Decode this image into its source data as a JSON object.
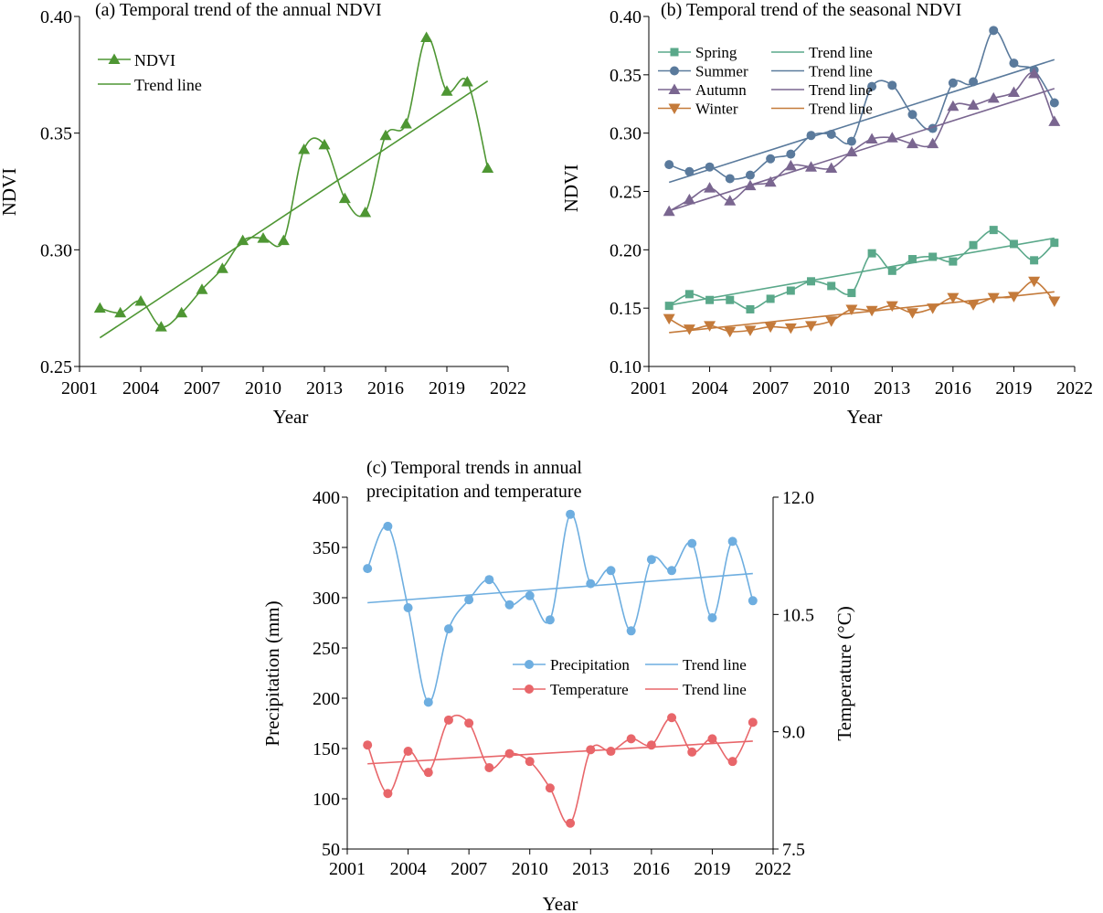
{
  "chart_data": [
    {
      "id": "a",
      "type": "line",
      "title": "(a) Temporal trend of the annual NDVI",
      "xlabel": "Year",
      "ylabel": "NDVI",
      "xlim": [
        2001,
        2022
      ],
      "xticks": [
        "2001",
        "2004",
        "2007",
        "2010",
        "2013",
        "2016",
        "2019",
        "2022"
      ],
      "ylim": [
        0.25,
        0.4
      ],
      "yticks": [
        "0.25",
        "0.30",
        "0.35",
        "0.40"
      ],
      "legend_position": "top-left",
      "x": [
        2002,
        2003,
        2004,
        2005,
        2006,
        2007,
        2008,
        2009,
        2010,
        2011,
        2012,
        2013,
        2014,
        2015,
        2016,
        2017,
        2018,
        2019,
        2020,
        2021
      ],
      "series": [
        {
          "name": "NDVI",
          "trend_name": "Trend line",
          "color": "#4e9633",
          "marker": "triangle-up",
          "values": [
            0.275,
            0.273,
            0.278,
            0.267,
            0.273,
            0.283,
            0.292,
            0.304,
            0.305,
            0.304,
            0.343,
            0.345,
            0.322,
            0.316,
            0.349,
            0.354,
            0.391,
            0.368,
            0.372,
            0.335
          ],
          "trend": [
            0.2623,
            0.3723
          ]
        }
      ]
    },
    {
      "id": "b",
      "type": "line",
      "title": "(b) Temporal trend of the seasonal NDVI",
      "xlabel": "Year",
      "ylabel": "NDVI",
      "xlim": [
        2001,
        2022
      ],
      "xticks": [
        "2001",
        "2004",
        "2007",
        "2010",
        "2013",
        "2016",
        "2019",
        "2022"
      ],
      "ylim": [
        0.1,
        0.4
      ],
      "yticks": [
        "0.10",
        "0.15",
        "0.20",
        "0.25",
        "0.30",
        "0.35",
        "0.40"
      ],
      "legend_position": "top-left",
      "x": [
        2002,
        2003,
        2004,
        2005,
        2006,
        2007,
        2008,
        2009,
        2010,
        2011,
        2012,
        2013,
        2014,
        2015,
        2016,
        2017,
        2018,
        2019,
        2020,
        2021
      ],
      "series": [
        {
          "name": "Spring",
          "trend_name": "Trend line",
          "color": "#5aa88a",
          "marker": "square",
          "values": [
            0.152,
            0.162,
            0.157,
            0.157,
            0.149,
            0.158,
            0.165,
            0.173,
            0.169,
            0.163,
            0.197,
            0.182,
            0.192,
            0.194,
            0.19,
            0.204,
            0.217,
            0.205,
            0.191,
            0.206
          ],
          "trend": [
            0.1525,
            0.21
          ]
        },
        {
          "name": "Summer",
          "trend_name": "Trend line",
          "color": "#5a7a9c",
          "marker": "circle",
          "values": [
            0.273,
            0.267,
            0.271,
            0.261,
            0.264,
            0.278,
            0.282,
            0.298,
            0.299,
            0.293,
            0.34,
            0.341,
            0.316,
            0.304,
            0.343,
            0.344,
            0.388,
            0.36,
            0.354,
            0.326
          ],
          "trend": [
            0.2578,
            0.363
          ]
        },
        {
          "name": "Autumn",
          "trend_name": "Trend line",
          "color": "#7a6690",
          "marker": "triangle-up",
          "values": [
            0.233,
            0.243,
            0.253,
            0.242,
            0.255,
            0.258,
            0.272,
            0.271,
            0.27,
            0.284,
            0.295,
            0.296,
            0.291,
            0.291,
            0.323,
            0.324,
            0.33,
            0.335,
            0.351,
            0.31
          ],
          "trend": [
            0.2334,
            0.3382
          ]
        },
        {
          "name": "Winter",
          "trend_name": "Trend line",
          "color": "#c47a3a",
          "marker": "triangle-down",
          "values": [
            0.141,
            0.132,
            0.135,
            0.13,
            0.131,
            0.134,
            0.133,
            0.135,
            0.139,
            0.149,
            0.148,
            0.152,
            0.146,
            0.15,
            0.159,
            0.153,
            0.159,
            0.16,
            0.173,
            0.156
          ],
          "trend": [
            0.129,
            0.164
          ]
        }
      ]
    },
    {
      "id": "c",
      "type": "line",
      "title": "(c) Temporal trends in annual precipitation and temperature",
      "title_lines": [
        "(c) Temporal trends in annual",
        "precipitation and temperature"
      ],
      "xlabel": "Year",
      "ylabel": "Precipitation (mm)",
      "ylabel_right": "Temperature (°C)",
      "xlim": [
        2001,
        2022
      ],
      "xticks": [
        "2001",
        "2004",
        "2007",
        "2010",
        "2013",
        "2016",
        "2019",
        "2022"
      ],
      "ylim": [
        50,
        400
      ],
      "yticks": [
        "50",
        "100",
        "150",
        "200",
        "250",
        "300",
        "350",
        "400"
      ],
      "ylim_right": [
        7.5,
        12.0
      ],
      "yticks_right": [
        "7.5",
        "9.0",
        "10.5",
        "12.0"
      ],
      "legend_position": "center-right",
      "x": [
        2002,
        2003,
        2004,
        2005,
        2006,
        2007,
        2008,
        2009,
        2010,
        2011,
        2012,
        2013,
        2014,
        2015,
        2016,
        2017,
        2018,
        2019,
        2020,
        2021
      ],
      "series": [
        {
          "name": "Precipitation",
          "trend_name": "Trend line",
          "color": "#6eaee0",
          "marker": "circle",
          "axis": "left",
          "values": [
            329,
            371,
            290,
            196,
            269,
            298,
            318,
            293,
            302,
            278,
            383,
            314,
            327,
            267,
            338,
            327,
            354,
            280,
            356,
            297
          ],
          "trend": [
            295,
            324
          ]
        },
        {
          "name": "Temperature",
          "trend_name": "Trend line",
          "color": "#e8666a",
          "marker": "circle",
          "axis": "right",
          "values": [
            8.83,
            8.21,
            8.75,
            8.48,
            9.15,
            9.11,
            8.54,
            8.72,
            8.62,
            8.28,
            7.83,
            8.77,
            8.75,
            8.91,
            8.83,
            9.18,
            8.74,
            8.91,
            8.62,
            9.12
          ],
          "trend": [
            8.59,
            8.88
          ]
        }
      ]
    }
  ]
}
